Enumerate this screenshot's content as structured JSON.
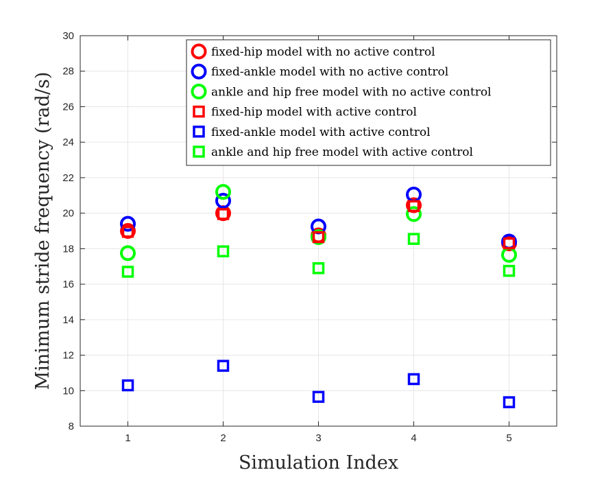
{
  "chart_data": {
    "type": "scatter",
    "title": "",
    "xlabel": "Simulation Index",
    "ylabel": "Minimum stride frequency (rad/s)",
    "xlim": [
      0.5,
      5.5
    ],
    "ylim": [
      8,
      30
    ],
    "xticks": [
      "1",
      "2",
      "3",
      "4",
      "5"
    ],
    "yticks": [
      "8",
      "10",
      "12",
      "14",
      "16",
      "18",
      "20",
      "22",
      "24",
      "26",
      "28",
      "30"
    ],
    "grid": true,
    "legend_position": "top-right",
    "x": [
      1,
      2,
      3,
      4,
      5
    ],
    "series": [
      {
        "name": "fixed-hip model with no active control",
        "marker": "circle",
        "color": "#ff0000",
        "values": [
          19.0,
          20.0,
          18.75,
          20.45,
          18.3
        ]
      },
      {
        "name": "fixed-ankle model with no active control",
        "marker": "circle",
        "color": "#0000ff",
        "values": [
          19.4,
          20.7,
          19.25,
          21.05,
          18.4
        ]
      },
      {
        "name": "ankle and hip free model with no active control",
        "marker": "circle",
        "color": "#00ff00",
        "values": [
          17.75,
          21.2,
          18.65,
          19.95,
          17.65
        ]
      },
      {
        "name": "fixed-hip model with active control",
        "marker": "square",
        "color": "#ff0000",
        "values": [
          18.95,
          19.95,
          18.65,
          20.4,
          18.3
        ]
      },
      {
        "name": "fixed-ankle model with active control",
        "marker": "square",
        "color": "#0000ff",
        "values": [
          10.3,
          11.4,
          9.65,
          10.65,
          9.35
        ]
      },
      {
        "name": "ankle and hip free model with active control",
        "marker": "square",
        "color": "#00ff00",
        "values": [
          16.7,
          17.85,
          16.9,
          18.55,
          16.75
        ]
      }
    ]
  }
}
